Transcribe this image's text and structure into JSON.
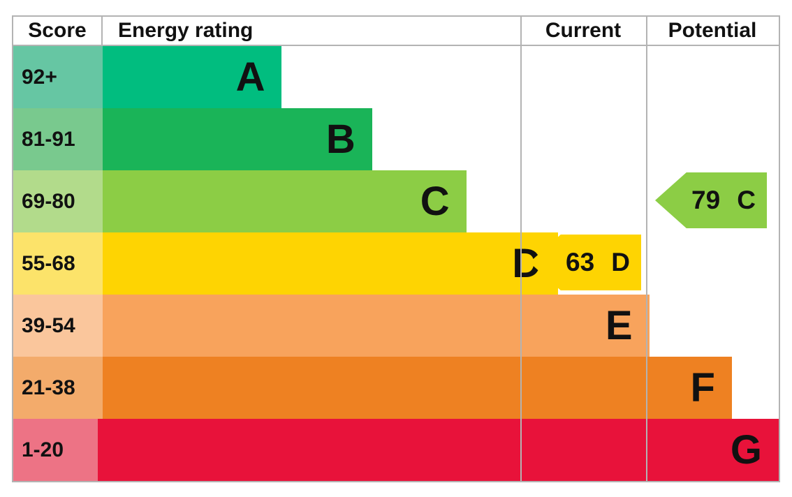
{
  "header": {
    "score": "Score",
    "rating": "Energy rating",
    "current": "Current",
    "potential": "Potential"
  },
  "bands": [
    {
      "score": "92+",
      "letter": "A",
      "bar_color": "#01bd7f",
      "tint_color": "#66c6a3",
      "width_pct": "23.4%"
    },
    {
      "score": "81-91",
      "letter": "B",
      "bar_color": "#1ab458",
      "tint_color": "#79c98e",
      "width_pct": "35.2%"
    },
    {
      "score": "69-80",
      "letter": "C",
      "bar_color": "#8ccd45",
      "tint_color": "#b2db8b",
      "width_pct": "47.5%"
    },
    {
      "score": "55-68",
      "letter": "D",
      "bar_color": "#fed402",
      "tint_color": "#fce36a",
      "width_pct": "59.5%"
    },
    {
      "score": "39-54",
      "letter": "E",
      "bar_color": "#f8a35c",
      "tint_color": "#fac69c",
      "width_pct": "71.4%"
    },
    {
      "score": "21-38",
      "letter": "F",
      "bar_color": "#ee8122",
      "tint_color": "#f3ab6b",
      "width_pct": "82.2%"
    },
    {
      "score": "1-20",
      "letter": "G",
      "bar_color": "#e8123a",
      "tint_color": "#ed7385",
      "width_pct": "94.4%"
    }
  ],
  "current": {
    "score": "63",
    "letter": "D",
    "color": "#fed402"
  },
  "potential": {
    "score": "79",
    "letter": "C",
    "color": "#8ccd45"
  },
  "grid_color": "#b3b3b3",
  "chart_data": {
    "type": "bar",
    "title": "Energy rating",
    "columns": [
      "Score",
      "Energy rating",
      "Current",
      "Potential"
    ],
    "categories": [
      "A",
      "B",
      "C",
      "D",
      "E",
      "F",
      "G"
    ],
    "score_ranges": [
      "92+",
      "81-91",
      "69-80",
      "55-68",
      "39-54",
      "21-38",
      "1-20"
    ],
    "bar_lengths_relative": [
      23.4,
      35.2,
      47.5,
      59.5,
      71.4,
      82.2,
      94.4
    ],
    "band_colors": [
      "#01bd7f",
      "#1ab458",
      "#8ccd45",
      "#fed402",
      "#f8a35c",
      "#ee8122",
      "#e8123a"
    ],
    "current": {
      "score": 63,
      "rating": "D"
    },
    "potential": {
      "score": 79,
      "rating": "C"
    },
    "legend_position": "none",
    "grid": "table-lines"
  }
}
